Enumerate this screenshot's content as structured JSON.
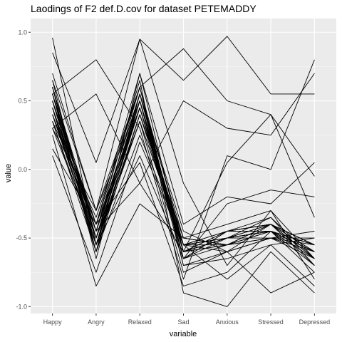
{
  "chart_data": {
    "type": "line",
    "title": "Laodings of F2 def.D.cov for dataset PETEMADDY",
    "xlabel": "variable",
    "ylabel": "value",
    "categories": [
      "Happy",
      "Angry",
      "Relaxed",
      "Sad",
      "Anxious",
      "Stressed",
      "Depressed"
    ],
    "ylim": [
      -1.05,
      1.1
    ],
    "yticks": [
      -1.0,
      -0.5,
      0.0,
      0.5,
      1.0
    ],
    "ytick_labels": [
      "-1.0",
      "-0.5",
      "0.0",
      "0.5",
      "1.0"
    ],
    "grid": true,
    "colors": {
      "panel": "#ebebeb",
      "grid_major": "#ffffff",
      "line": "#000000"
    },
    "series": [
      {
        "values": [
          0.96,
          -0.55,
          0.45,
          -0.6,
          -0.5,
          -0.45,
          -0.55
        ]
      },
      {
        "values": [
          0.85,
          0.05,
          0.95,
          0.65,
          0.97,
          0.55,
          0.55
        ]
      },
      {
        "values": [
          0.65,
          -0.3,
          0.6,
          0.88,
          0.5,
          0.4,
          -0.05
        ]
      },
      {
        "values": [
          0.55,
          0.8,
          0.3,
          -0.8,
          0.1,
          0.0,
          0.8
        ]
      },
      {
        "values": [
          0.3,
          0.55,
          -0.1,
          0.5,
          0.3,
          0.25,
          0.7
        ]
      },
      {
        "values": [
          0.7,
          -0.3,
          0.95,
          -0.1,
          -0.7,
          -0.3,
          -0.8
        ]
      },
      {
        "values": [
          0.5,
          -0.4,
          0.7,
          -0.6,
          -0.55,
          -0.5,
          -0.6
        ]
      },
      {
        "values": [
          0.45,
          -0.5,
          0.5,
          -0.55,
          -0.5,
          -0.45,
          -0.65
        ]
      },
      {
        "values": [
          0.4,
          -0.45,
          0.55,
          -0.65,
          -0.45,
          -0.4,
          -0.55
        ]
      },
      {
        "values": [
          0.55,
          -0.6,
          0.4,
          -0.5,
          -0.55,
          -0.45,
          -0.7
        ]
      },
      {
        "values": [
          0.6,
          -0.5,
          0.45,
          -0.6,
          -0.45,
          -0.4,
          -0.6
        ]
      },
      {
        "values": [
          0.35,
          -0.35,
          0.6,
          -0.7,
          -0.6,
          -0.5,
          -0.5
        ]
      },
      {
        "values": [
          0.5,
          -0.55,
          0.35,
          -0.55,
          -0.5,
          -0.35,
          -0.65
        ]
      },
      {
        "values": [
          0.45,
          -0.45,
          0.5,
          -0.6,
          -0.55,
          -0.45,
          -0.75
        ]
      },
      {
        "values": [
          0.6,
          -0.65,
          0.55,
          -0.45,
          -0.6,
          -0.4,
          -0.55
        ]
      },
      {
        "values": [
          0.4,
          -0.4,
          0.45,
          -0.65,
          -0.5,
          -0.5,
          -0.45
        ]
      },
      {
        "values": [
          0.55,
          -0.5,
          0.6,
          -0.55,
          -0.45,
          -0.45,
          -0.6
        ]
      },
      {
        "values": [
          0.65,
          -0.6,
          0.4,
          -0.5,
          -0.55,
          -0.4,
          -0.7
        ]
      },
      {
        "values": [
          0.3,
          -0.3,
          0.5,
          -0.7,
          -0.65,
          -0.55,
          -0.5
        ]
      },
      {
        "values": [
          0.5,
          -0.55,
          0.55,
          -0.6,
          -0.5,
          -0.4,
          -0.65
        ]
      },
      {
        "values": [
          0.1,
          -0.75,
          0.2,
          -0.55,
          -0.45,
          -0.4,
          -0.6
        ]
      },
      {
        "values": [
          0.25,
          -0.85,
          -0.25,
          -0.5,
          -0.4,
          -0.3,
          -0.65
        ]
      },
      {
        "values": [
          0.55,
          -0.45,
          0.65,
          -0.9,
          -1.0,
          -0.6,
          -0.9
        ]
      },
      {
        "values": [
          0.4,
          -0.5,
          0.35,
          -0.75,
          -0.6,
          -0.9,
          -0.75
        ]
      },
      {
        "values": [
          0.35,
          -0.6,
          0.25,
          -0.55,
          -0.8,
          -0.55,
          -0.85
        ]
      },
      {
        "values": [
          0.6,
          -0.45,
          -0.1,
          -0.6,
          0.05,
          0.4,
          -0.35
        ]
      },
      {
        "values": [
          0.5,
          -0.55,
          0.1,
          -0.65,
          -0.25,
          -0.15,
          -0.2
        ]
      },
      {
        "values": [
          0.15,
          -0.4,
          0.05,
          -0.85,
          -0.75,
          -0.45,
          -0.55
        ]
      },
      {
        "values": [
          0.45,
          -0.6,
          0.7,
          -0.4,
          -0.2,
          -0.25,
          0.05
        ]
      },
      {
        "values": [
          0.35,
          -0.55,
          0.55,
          -0.6,
          -0.5,
          -0.4,
          -0.6
        ]
      },
      {
        "values": [
          0.45,
          -0.45,
          0.45,
          -0.55,
          -0.55,
          -0.45,
          -0.55
        ]
      },
      {
        "values": [
          0.55,
          -0.5,
          0.5,
          -0.65,
          -0.45,
          -0.4,
          -0.65
        ]
      },
      {
        "values": [
          0.4,
          -0.55,
          0.4,
          -0.6,
          -0.5,
          -0.45,
          -0.6
        ]
      },
      {
        "values": [
          0.5,
          -0.45,
          0.55,
          -0.5,
          -0.55,
          -0.5,
          -0.55
        ]
      },
      {
        "values": [
          0.6,
          -0.5,
          0.45,
          -0.6,
          -0.45,
          -0.35,
          -0.7
        ]
      },
      {
        "values": [
          0.45,
          -0.6,
          0.5,
          -0.55,
          -0.5,
          -0.45,
          -0.6
        ]
      },
      {
        "values": [
          0.55,
          -0.4,
          0.6,
          -0.65,
          -0.55,
          -0.4,
          -0.55
        ]
      },
      {
        "values": [
          0.3,
          -0.5,
          0.35,
          -0.55,
          -0.6,
          -0.5,
          -0.65
        ]
      },
      {
        "values": [
          0.5,
          -0.55,
          0.45,
          -0.6,
          -0.5,
          -0.45,
          -0.6
        ]
      }
    ]
  }
}
